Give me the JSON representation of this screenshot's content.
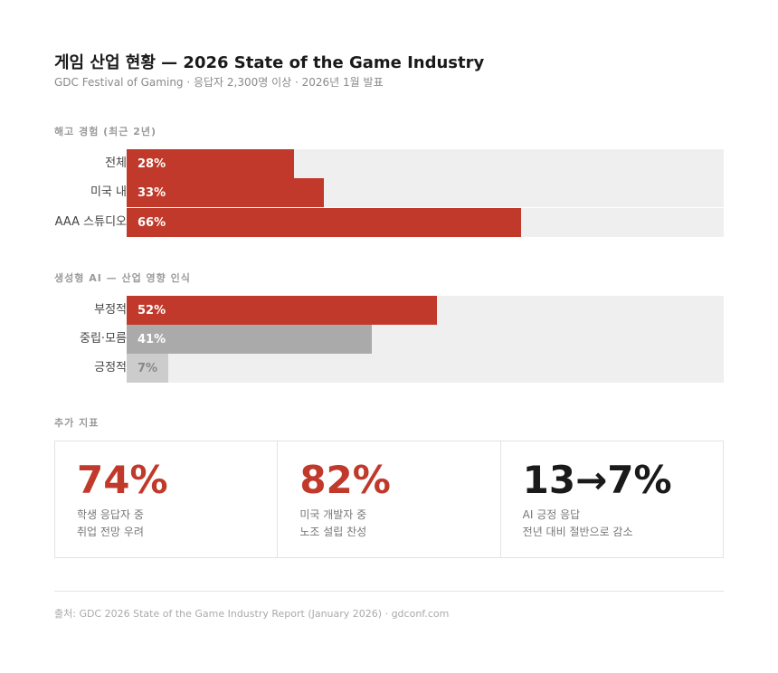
{
  "header": {
    "title": "게임 산업 현황 — 2026 State of the Game Industry",
    "subtitle": "GDC Festival of Gaming · 응답자 2,300명 이상 · 2026년 1월 발표"
  },
  "colors": {
    "accent": "#c0392b",
    "neutral": "#aaaaaa",
    "positive_light": "#cccccc",
    "track": "#efefef",
    "text_on_light": "#888888"
  },
  "chart_data": [
    {
      "type": "bar",
      "orientation": "horizontal",
      "title": "해고 경험 (최근 2년)",
      "categories": [
        "전체",
        "미국 내",
        "AAA 스튜디오"
      ],
      "values": [
        28,
        33,
        66
      ],
      "value_labels": [
        "28%",
        "33%",
        "66%"
      ],
      "unit": "%",
      "xlim": [
        0,
        100
      ],
      "bar_colors": [
        "#c0392b",
        "#c0392b",
        "#c0392b"
      ],
      "label_colors": [
        "#ffffff",
        "#ffffff",
        "#ffffff"
      ],
      "grid": false
    },
    {
      "type": "bar",
      "orientation": "horizontal",
      "title": "생성형 AI — 산업 영향 인식",
      "categories": [
        "부정적",
        "중립·모름",
        "긍정적"
      ],
      "values": [
        52,
        41,
        7
      ],
      "value_labels": [
        "52%",
        "41%",
        "7%"
      ],
      "unit": "%",
      "xlim": [
        0,
        100
      ],
      "bar_colors": [
        "#c0392b",
        "#aaaaaa",
        "#cccccc"
      ],
      "label_colors": [
        "#ffffff",
        "#ffffff",
        "#888888"
      ],
      "grid": false
    }
  ],
  "extra": {
    "title": "추가 지표",
    "cards": [
      {
        "value": "74%",
        "color": "#c0392b",
        "desc_line1": "학생 응답자 중",
        "desc_line2": "취업 전망 우려"
      },
      {
        "value": "82%",
        "color": "#c0392b",
        "desc_line1": "미국 개발자 중",
        "desc_line2": "노조 설립 찬성"
      },
      {
        "value": "13→7%",
        "color": "#1a1a1a",
        "desc_line1": "AI 긍정 응답",
        "desc_line2": "전년 대비 절반으로 감소"
      }
    ]
  },
  "footer": {
    "source": "출처: GDC 2026 State of the Game Industry Report (January 2026) · gdconf.com"
  }
}
